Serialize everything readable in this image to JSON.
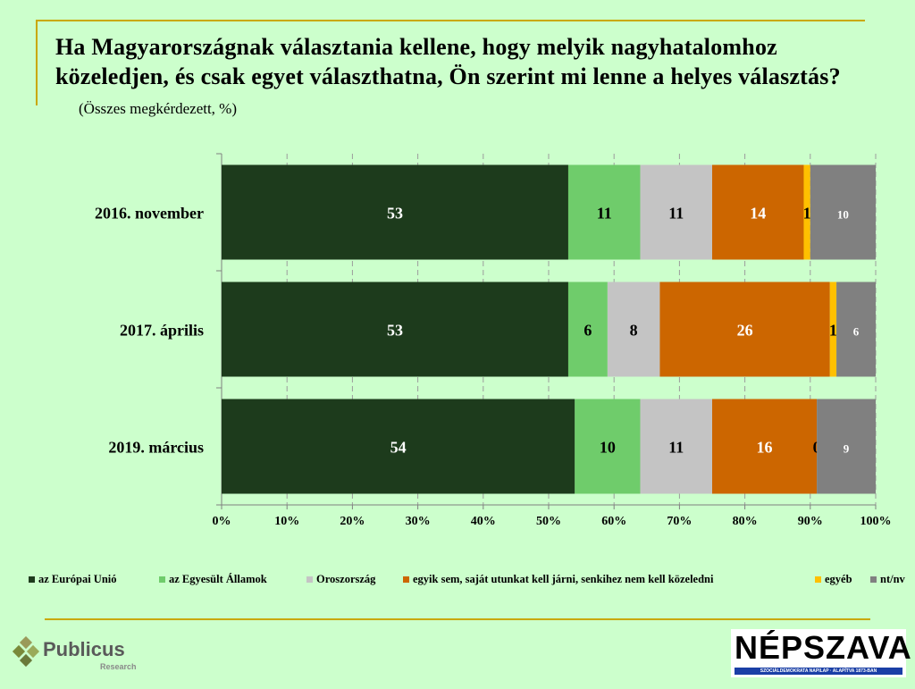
{
  "title": {
    "main": "Ha Magyarországnak választania kellene, hogy melyik nagyhatalomhoz közeledjen, és csak egyet választhatna, Ön szerint mi lenne a helyes választás?",
    "subtitle": "(Összes megkérdezett, %)"
  },
  "chart_data": {
    "type": "bar",
    "orientation": "horizontal",
    "stacked": "percent",
    "categories": [
      "2016. november",
      "2017. április",
      "2019. március"
    ],
    "series": [
      {
        "name": "az Európai Unió",
        "color": "#1d3b1c",
        "label_color": "#ffffff",
        "values": [
          53,
          53,
          54
        ]
      },
      {
        "name": "az Egyesült Államok",
        "color": "#6fcc6b",
        "label_color": "#000000",
        "values": [
          11,
          6,
          10
        ]
      },
      {
        "name": "Oroszország",
        "color": "#c4c4c4",
        "label_color": "#000000",
        "values": [
          11,
          8,
          11
        ]
      },
      {
        "name": "egyik sem, saját utunkat kell járni, senkihez nem kell közeledni",
        "color": "#cc6600",
        "label_color": "#ffffff",
        "values": [
          14,
          26,
          16
        ]
      },
      {
        "name": "egyéb",
        "color": "#ffc000",
        "label_color": "#000000",
        "values": [
          1,
          1,
          0
        ]
      },
      {
        "name": "nt/nv",
        "color": "#808080",
        "label_color": "#ffffff",
        "values": [
          10,
          6,
          9
        ]
      }
    ],
    "xticks": [
      "0%",
      "10%",
      "20%",
      "30%",
      "40%",
      "50%",
      "60%",
      "70%",
      "80%",
      "90%",
      "100%"
    ],
    "xlim": [
      0,
      100
    ],
    "grid": "vertical dashed",
    "legend": "bottom"
  },
  "logos": {
    "publicus": {
      "word": "Publicus",
      "tag": "Research"
    },
    "nepszava": {
      "word": "NÉPSZAVA",
      "band": "SZOCIÁLDEMOKRATA NAPILAP · ALAPÍTVA 1873-BAN"
    }
  }
}
